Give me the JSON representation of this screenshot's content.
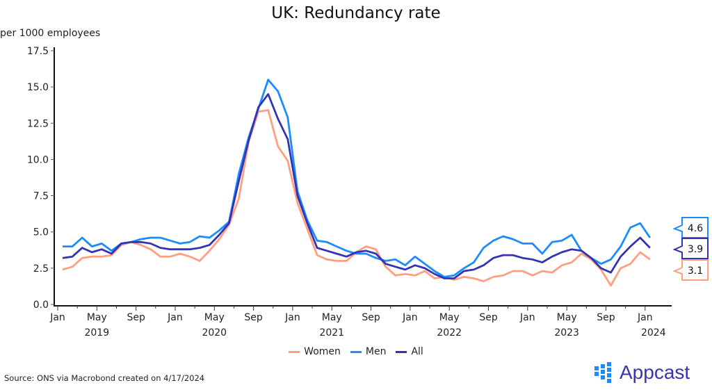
{
  "chart_data": {
    "type": "line",
    "title": "UK: Redundancy rate",
    "ylabel": "per 1000 employees",
    "xlabel": "",
    "ylim": [
      0,
      17.5
    ],
    "yticks": [
      "0.0",
      "2.5",
      "5.0",
      "7.5",
      "10.0",
      "12.5",
      "15.0",
      "17.5"
    ],
    "x_start": "Jan 2019",
    "x_end": "Jan 2024",
    "frequency": "monthly",
    "xtick_months": [
      "Jan",
      "May",
      "Sep",
      "Jan",
      "May",
      "Sep",
      "Jan",
      "May",
      "Sep",
      "Jan",
      "May",
      "Sep",
      "Jan",
      "May",
      "Sep",
      "Jan"
    ],
    "xtick_years": [
      "2019",
      "2020",
      "2021",
      "2022",
      "2023",
      "2024"
    ],
    "grid": false,
    "legend_position": "bottom",
    "series": [
      {
        "name": "Women",
        "color": "#ff9f7f",
        "last_label": "3.1",
        "values": [
          2.4,
          2.6,
          3.2,
          3.3,
          3.3,
          3.4,
          4.1,
          4.3,
          4.1,
          3.8,
          3.3,
          3.3,
          3.5,
          3.3,
          3.0,
          3.7,
          4.5,
          5.5,
          7.3,
          11.2,
          13.3,
          13.4,
          10.9,
          9.9,
          7.0,
          5.2,
          3.4,
          3.1,
          3.0,
          3.0,
          3.6,
          4.0,
          3.8,
          2.6,
          2.0,
          2.1,
          2.0,
          2.3,
          1.8,
          1.9,
          1.7,
          1.9,
          1.8,
          1.6,
          1.9,
          2.0,
          2.3,
          2.3,
          2.0,
          2.3,
          2.2,
          2.7,
          2.9,
          3.5,
          3.1,
          2.4,
          1.3,
          2.5,
          2.8,
          3.6,
          3.1
        ]
      },
      {
        "name": "Men",
        "color": "#1a8cff",
        "last_label": "4.6",
        "values": [
          4.0,
          4.0,
          4.6,
          4.0,
          4.2,
          3.7,
          4.2,
          4.3,
          4.5,
          4.6,
          4.6,
          4.4,
          4.2,
          4.3,
          4.7,
          4.6,
          5.1,
          5.7,
          9.0,
          11.5,
          13.5,
          15.5,
          14.7,
          12.9,
          7.8,
          5.8,
          4.4,
          4.3,
          4.0,
          3.7,
          3.5,
          3.5,
          3.2,
          3.0,
          3.1,
          2.7,
          3.3,
          2.8,
          2.3,
          1.9,
          2.0,
          2.5,
          2.9,
          3.9,
          4.4,
          4.7,
          4.5,
          4.2,
          4.2,
          3.5,
          4.3,
          4.4,
          4.8,
          3.7,
          3.2,
          2.8,
          3.1,
          4.0,
          5.3,
          5.6,
          4.6
        ]
      },
      {
        "name": "All",
        "color": "#3333b3",
        "last_label": "3.9",
        "values": [
          3.2,
          3.3,
          3.9,
          3.6,
          3.8,
          3.5,
          4.2,
          4.3,
          4.3,
          4.2,
          3.9,
          3.8,
          3.8,
          3.8,
          3.9,
          4.1,
          4.8,
          5.6,
          8.5,
          11.3,
          13.6,
          14.5,
          12.8,
          11.4,
          7.5,
          5.6,
          3.9,
          3.7,
          3.5,
          3.3,
          3.6,
          3.7,
          3.5,
          2.8,
          2.6,
          2.4,
          2.7,
          2.5,
          2.1,
          1.8,
          1.8,
          2.3,
          2.4,
          2.7,
          3.2,
          3.4,
          3.4,
          3.2,
          3.1,
          2.9,
          3.3,
          3.6,
          3.8,
          3.7,
          3.2,
          2.5,
          2.2,
          3.3,
          4.0,
          4.6,
          3.9
        ]
      }
    ]
  },
  "source": "Source: ONS via Macrobond created on 4/17/2024",
  "logo": "Appcast"
}
